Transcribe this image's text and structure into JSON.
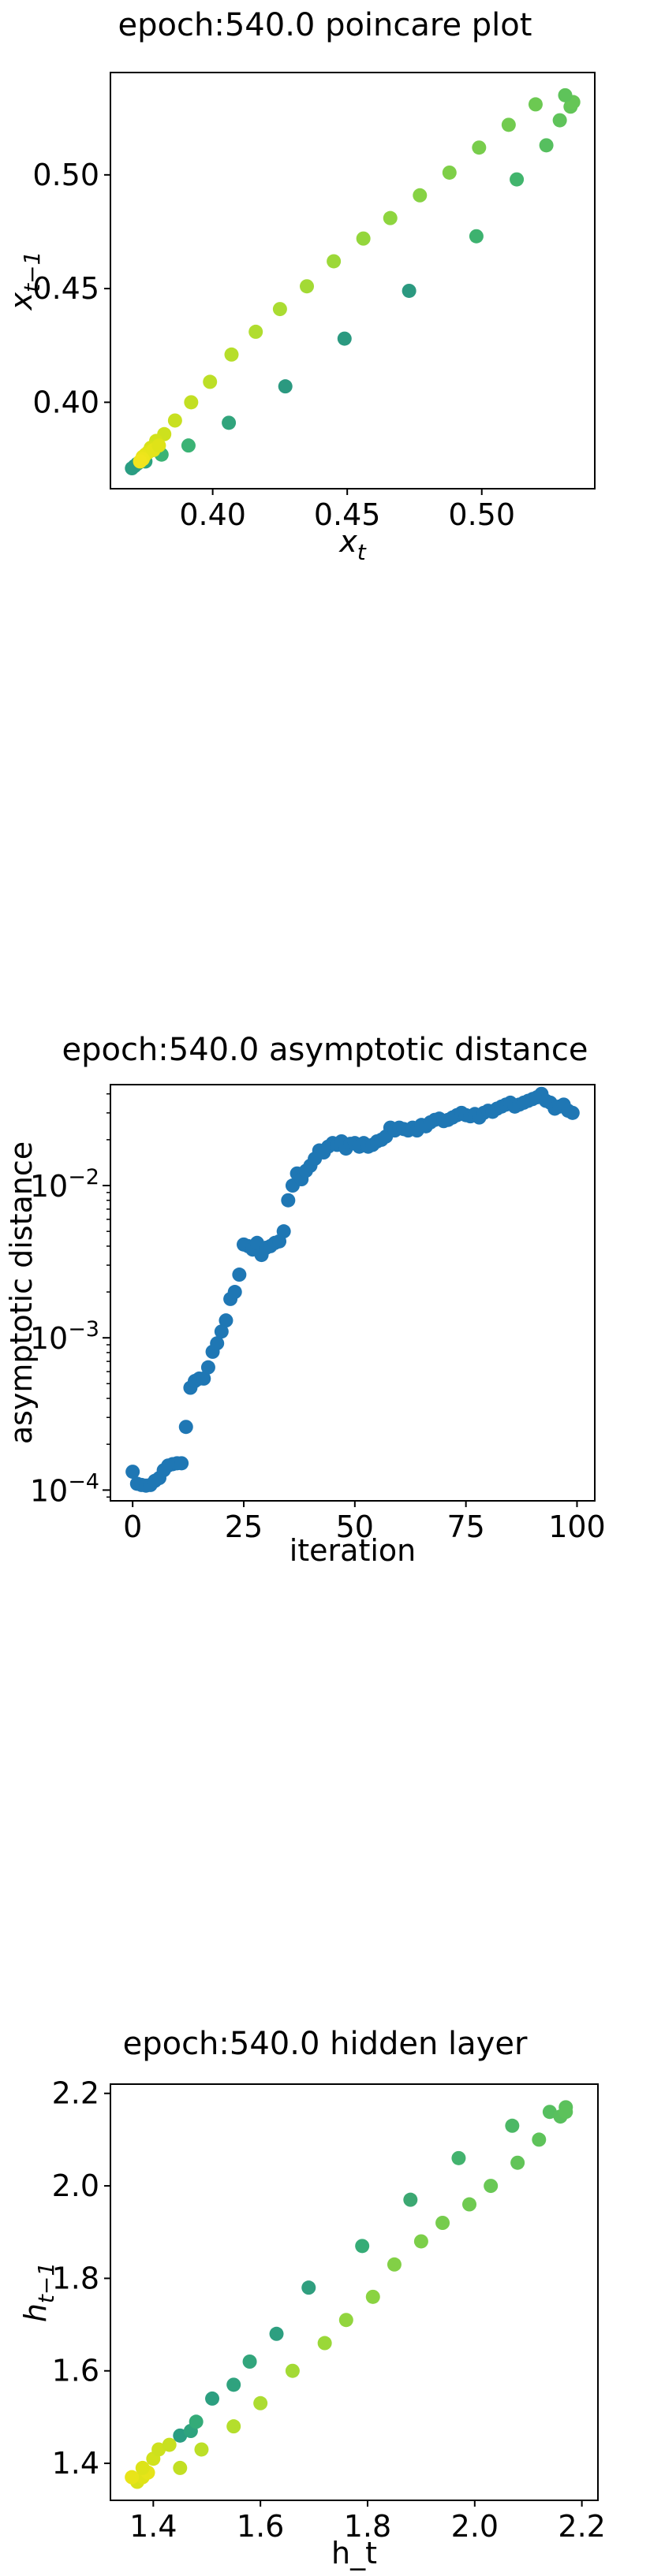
{
  "chart_data": [
    {
      "type": "scatter",
      "title": "epoch:540.0 poincare plot",
      "xlabel": "x_t",
      "ylabel": "x_{t-1}",
      "xlim": [
        0.362,
        0.542
      ],
      "ylim": [
        0.362,
        0.545
      ],
      "xticks": [
        0.4,
        0.45,
        0.5
      ],
      "yticks": [
        0.4,
        0.45,
        0.5
      ],
      "tick_labels_x": [
        "0.40",
        "0.45",
        "0.50"
      ],
      "tick_labels_y": [
        "0.40",
        "0.45",
        "0.50"
      ],
      "grid": false,
      "colormap": "viridis",
      "points": [
        {
          "x": 0.37,
          "y": 0.371,
          "color": "#2a9d82"
        },
        {
          "x": 0.372,
          "y": 0.373,
          "color": "#2a9d82"
        },
        {
          "x": 0.371,
          "y": 0.372,
          "color": "#2a9d82"
        },
        {
          "x": 0.375,
          "y": 0.374,
          "color": "#2ca37f"
        },
        {
          "x": 0.381,
          "y": 0.377,
          "color": "#3bb375"
        },
        {
          "x": 0.391,
          "y": 0.381,
          "color": "#3bb375"
        },
        {
          "x": 0.406,
          "y": 0.391,
          "color": "#31a47c"
        },
        {
          "x": 0.427,
          "y": 0.407,
          "color": "#2b9980"
        },
        {
          "x": 0.449,
          "y": 0.428,
          "color": "#2b9980"
        },
        {
          "x": 0.473,
          "y": 0.449,
          "color": "#2b9980"
        },
        {
          "x": 0.498,
          "y": 0.473,
          "color": "#3db26f"
        },
        {
          "x": 0.513,
          "y": 0.498,
          "color": "#42b56d"
        },
        {
          "x": 0.524,
          "y": 0.513,
          "color": "#56bf5f"
        },
        {
          "x": 0.529,
          "y": 0.524,
          "color": "#5fc35a"
        },
        {
          "x": 0.533,
          "y": 0.53,
          "color": "#63c558"
        },
        {
          "x": 0.534,
          "y": 0.532,
          "color": "#66c656"
        },
        {
          "x": 0.531,
          "y": 0.535,
          "color": "#5ec35a"
        },
        {
          "x": 0.52,
          "y": 0.531,
          "color": "#6cc952"
        },
        {
          "x": 0.51,
          "y": 0.522,
          "color": "#72cb4f"
        },
        {
          "x": 0.499,
          "y": 0.512,
          "color": "#78cd4c"
        },
        {
          "x": 0.488,
          "y": 0.501,
          "color": "#7ecf48"
        },
        {
          "x": 0.477,
          "y": 0.491,
          "color": "#86d244"
        },
        {
          "x": 0.466,
          "y": 0.481,
          "color": "#8ed53f"
        },
        {
          "x": 0.456,
          "y": 0.472,
          "color": "#94d63c"
        },
        {
          "x": 0.445,
          "y": 0.462,
          "color": "#9cd838"
        },
        {
          "x": 0.435,
          "y": 0.451,
          "color": "#a3da35"
        },
        {
          "x": 0.425,
          "y": 0.441,
          "color": "#aadc32"
        },
        {
          "x": 0.416,
          "y": 0.431,
          "color": "#b0dd2f"
        },
        {
          "x": 0.407,
          "y": 0.421,
          "color": "#b6de2b"
        },
        {
          "x": 0.399,
          "y": 0.409,
          "color": "#bcdf27"
        },
        {
          "x": 0.392,
          "y": 0.4,
          "color": "#c2df23"
        },
        {
          "x": 0.386,
          "y": 0.392,
          "color": "#c8e020"
        },
        {
          "x": 0.382,
          "y": 0.386,
          "color": "#cde11d"
        },
        {
          "x": 0.379,
          "y": 0.383,
          "color": "#d2e21b"
        },
        {
          "x": 0.377,
          "y": 0.38,
          "color": "#d8e219"
        },
        {
          "x": 0.376,
          "y": 0.378,
          "color": "#dde318"
        },
        {
          "x": 0.375,
          "y": 0.377,
          "color": "#e2e418"
        },
        {
          "x": 0.374,
          "y": 0.376,
          "color": "#e8e419"
        },
        {
          "x": 0.374,
          "y": 0.375,
          "color": "#ede51b"
        },
        {
          "x": 0.373,
          "y": 0.374,
          "color": "#f1e51d"
        },
        {
          "x": 0.378,
          "y": 0.379,
          "color": "#e5e419"
        },
        {
          "x": 0.38,
          "y": 0.381,
          "color": "#dfe318"
        }
      ]
    },
    {
      "type": "scatter",
      "title": "epoch:540.0 asymptotic distance",
      "xlabel": "iteration",
      "ylabel": "asymptotic distance",
      "yscale": "log",
      "xlim": [
        -5,
        104
      ],
      "ylim": [
        8.5e-05,
        0.046
      ],
      "xticks": [
        0,
        25,
        50,
        75,
        100
      ],
      "tick_labels_x": [
        "0",
        "25",
        "50",
        "75",
        "100"
      ],
      "yticks_log": [
        -4,
        -3,
        -2
      ],
      "tick_labels_y": {
        "base": "10",
        "exponents": [
          "−4",
          "−3",
          "−2"
        ]
      },
      "grid": false,
      "color": "#1f77b4",
      "x": [
        0,
        1,
        2,
        3,
        4,
        5,
        6,
        7,
        8,
        9,
        10,
        11,
        12,
        13,
        14,
        15,
        16,
        17,
        18,
        19,
        20,
        21,
        22,
        23,
        24,
        25,
        26,
        27,
        28,
        29,
        30,
        31,
        32,
        33,
        34,
        35,
        36,
        37,
        38,
        39,
        40,
        41,
        42,
        43,
        44,
        45,
        46,
        47,
        48,
        49,
        50,
        51,
        52,
        53,
        54,
        55,
        56,
        57,
        58,
        59,
        60,
        61,
        62,
        63,
        64,
        65,
        66,
        67,
        68,
        69,
        70,
        71,
        72,
        73,
        74,
        75,
        76,
        77,
        78,
        79,
        80,
        81,
        82,
        83,
        84,
        85,
        86,
        87,
        88,
        89,
        90,
        91,
        92,
        93,
        94,
        95,
        96,
        97,
        98,
        99
      ],
      "y": [
        0.000132,
        0.00011,
        0.000108,
        0.000107,
        0.000108,
        0.000115,
        0.00012,
        0.000135,
        0.000145,
        0.000148,
        0.00015,
        0.00015,
        0.00026,
        0.00047,
        0.00052,
        0.00054,
        0.00054,
        0.00064,
        0.00081,
        0.00092,
        0.0011,
        0.0013,
        0.0018,
        0.002,
        0.0026,
        0.0041,
        0.004,
        0.0038,
        0.0042,
        0.0035,
        0.0039,
        0.004,
        0.0042,
        0.0043,
        0.005,
        0.008,
        0.01,
        0.012,
        0.011,
        0.0125,
        0.0135,
        0.015,
        0.017,
        0.0165,
        0.018,
        0.019,
        0.0185,
        0.0195,
        0.0175,
        0.0188,
        0.019,
        0.018,
        0.019,
        0.018,
        0.0185,
        0.0195,
        0.02,
        0.021,
        0.024,
        0.023,
        0.024,
        0.0235,
        0.023,
        0.024,
        0.023,
        0.025,
        0.0245,
        0.026,
        0.027,
        0.0275,
        0.0265,
        0.027,
        0.028,
        0.029,
        0.03,
        0.029,
        0.0285,
        0.0295,
        0.028,
        0.03,
        0.031,
        0.0305,
        0.032,
        0.033,
        0.034,
        0.035,
        0.033,
        0.034,
        0.035,
        0.036,
        0.037,
        0.038,
        0.04,
        0.036,
        0.035,
        0.032,
        0.033,
        0.034,
        0.031,
        0.03
      ]
    },
    {
      "type": "scatter",
      "title": "epoch:540.0 hidden layer",
      "xlabel": "h_t",
      "ylabel": "h_{t-1}",
      "xlim": [
        1.32,
        2.23
      ],
      "ylim": [
        1.32,
        2.22
      ],
      "xticks": [
        1.4,
        1.6,
        1.8,
        2.0,
        2.2
      ],
      "yticks": [
        1.4,
        1.6,
        1.8,
        2.0,
        2.2
      ],
      "tick_labels_x": [
        "1.4",
        "1.6",
        "1.8",
        "2.0",
        "2.2"
      ],
      "tick_labels_y": [
        "1.4",
        "1.6",
        "1.8",
        "2.0",
        "2.2"
      ],
      "grid": false,
      "colormap": "viridis",
      "points": [
        {
          "x": 1.37,
          "y": 1.36,
          "color": "#d9e21a"
        },
        {
          "x": 1.38,
          "y": 1.37,
          "color": "#e0e318"
        },
        {
          "x": 1.39,
          "y": 1.38,
          "color": "#e6e419"
        },
        {
          "x": 1.36,
          "y": 1.37,
          "color": "#e8e419"
        },
        {
          "x": 1.38,
          "y": 1.39,
          "color": "#dde318"
        },
        {
          "x": 1.4,
          "y": 1.41,
          "color": "#d2e21b"
        },
        {
          "x": 1.41,
          "y": 1.43,
          "color": "#cde11d"
        },
        {
          "x": 1.43,
          "y": 1.44,
          "color": "#c8e020"
        },
        {
          "x": 1.45,
          "y": 1.39,
          "color": "#c2df23"
        },
        {
          "x": 1.45,
          "y": 1.46,
          "color": "#2a9d82"
        },
        {
          "x": 1.47,
          "y": 1.47,
          "color": "#2ea37e"
        },
        {
          "x": 1.48,
          "y": 1.49,
          "color": "#34ab78"
        },
        {
          "x": 1.49,
          "y": 1.43,
          "color": "#bcdf27"
        },
        {
          "x": 1.51,
          "y": 1.54,
          "color": "#2c9f80"
        },
        {
          "x": 1.55,
          "y": 1.57,
          "color": "#2fa27e"
        },
        {
          "x": 1.55,
          "y": 1.48,
          "color": "#b4de2c"
        },
        {
          "x": 1.58,
          "y": 1.62,
          "color": "#32a57c"
        },
        {
          "x": 1.6,
          "y": 1.53,
          "color": "#acdc31"
        },
        {
          "x": 1.63,
          "y": 1.68,
          "color": "#2d9f80"
        },
        {
          "x": 1.66,
          "y": 1.6,
          "color": "#a3da35"
        },
        {
          "x": 1.69,
          "y": 1.78,
          "color": "#309f7f"
        },
        {
          "x": 1.72,
          "y": 1.66,
          "color": "#9ad838"
        },
        {
          "x": 1.76,
          "y": 1.71,
          "color": "#92d53e"
        },
        {
          "x": 1.79,
          "y": 1.87,
          "color": "#36ac77"
        },
        {
          "x": 1.81,
          "y": 1.76,
          "color": "#8ad341"
        },
        {
          "x": 1.85,
          "y": 1.83,
          "color": "#82d046"
        },
        {
          "x": 1.88,
          "y": 1.97,
          "color": "#3ca872"
        },
        {
          "x": 1.9,
          "y": 1.88,
          "color": "#7ccf49"
        },
        {
          "x": 1.94,
          "y": 1.92,
          "color": "#76cc4d"
        },
        {
          "x": 1.97,
          "y": 2.06,
          "color": "#43b36e"
        },
        {
          "x": 1.99,
          "y": 1.96,
          "color": "#6fca51"
        },
        {
          "x": 2.03,
          "y": 2.0,
          "color": "#69c855"
        },
        {
          "x": 2.07,
          "y": 2.13,
          "color": "#4cb866"
        },
        {
          "x": 2.08,
          "y": 2.05,
          "color": "#62c458"
        },
        {
          "x": 2.12,
          "y": 2.1,
          "color": "#5ec35a"
        },
        {
          "x": 2.14,
          "y": 2.16,
          "color": "#56bf5f"
        },
        {
          "x": 2.16,
          "y": 2.15,
          "color": "#59c05d"
        },
        {
          "x": 2.17,
          "y": 2.17,
          "color": "#5bc15c"
        },
        {
          "x": 2.17,
          "y": 2.16,
          "color": "#5cc25b"
        }
      ]
    }
  ]
}
